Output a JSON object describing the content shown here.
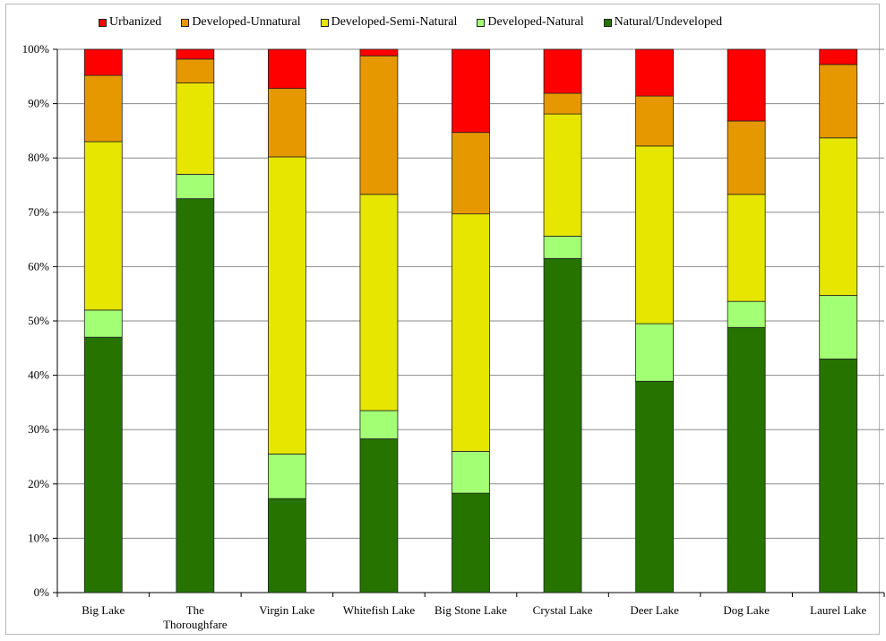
{
  "chart_data": {
    "type": "bar",
    "stacked": true,
    "percent": true,
    "categories": [
      "Big Lake",
      "The Thoroughfare",
      "Virgin Lake",
      "Whitefish Lake",
      "Big Stone Lake",
      "Crystal Lake",
      "Deer Lake",
      "Dog Lake",
      "Laurel Lake"
    ],
    "category_label_lines": [
      [
        "Big Lake"
      ],
      [
        "The",
        "Thoroughfare"
      ],
      [
        "Virgin Lake"
      ],
      [
        "Whitefish Lake"
      ],
      [
        "Big Stone Lake"
      ],
      [
        "Crystal Lake"
      ],
      [
        "Deer Lake"
      ],
      [
        "Dog Lake"
      ],
      [
        "Laurel Lake"
      ]
    ],
    "series": [
      {
        "name": "Natural/Undeveloped",
        "color": "#267300",
        "values": [
          47,
          72.5,
          17.3,
          28.3,
          18.3,
          61.5,
          38.9,
          48.8,
          43
        ]
      },
      {
        "name": "Developed-Natural",
        "color": "#a3ff73",
        "values": [
          5,
          4.5,
          8.2,
          5.2,
          7.7,
          4.1,
          10.6,
          4.8,
          11.7
        ]
      },
      {
        "name": "Developed-Semi-Natural",
        "color": "#e6e600",
        "values": [
          31,
          16.8,
          54.7,
          39.8,
          43.7,
          22.5,
          32.7,
          19.7,
          29
        ]
      },
      {
        "name": "Developed-Unnatural",
        "color": "#e69800",
        "values": [
          12.2,
          4.4,
          12.6,
          25.5,
          15,
          3.8,
          9.2,
          13.5,
          13.5
        ]
      },
      {
        "name": "Urbanized",
        "color": "#ff0000",
        "values": [
          4.8,
          1.8,
          7.2,
          1.2,
          15.3,
          8.1,
          8.6,
          13.2,
          2.8
        ]
      }
    ],
    "legend_order": [
      "Urbanized",
      "Developed-Unnatural",
      "Developed-Semi-Natural",
      "Developed-Natural",
      "Natural/Undeveloped"
    ],
    "ylim": [
      0,
      100
    ],
    "yticks": [
      "0%",
      "10%",
      "20%",
      "30%",
      "40%",
      "50%",
      "60%",
      "70%",
      "80%",
      "90%",
      "100%"
    ],
    "grid": true,
    "legend_position": "top",
    "title": "",
    "xlabel": "",
    "ylabel": ""
  }
}
